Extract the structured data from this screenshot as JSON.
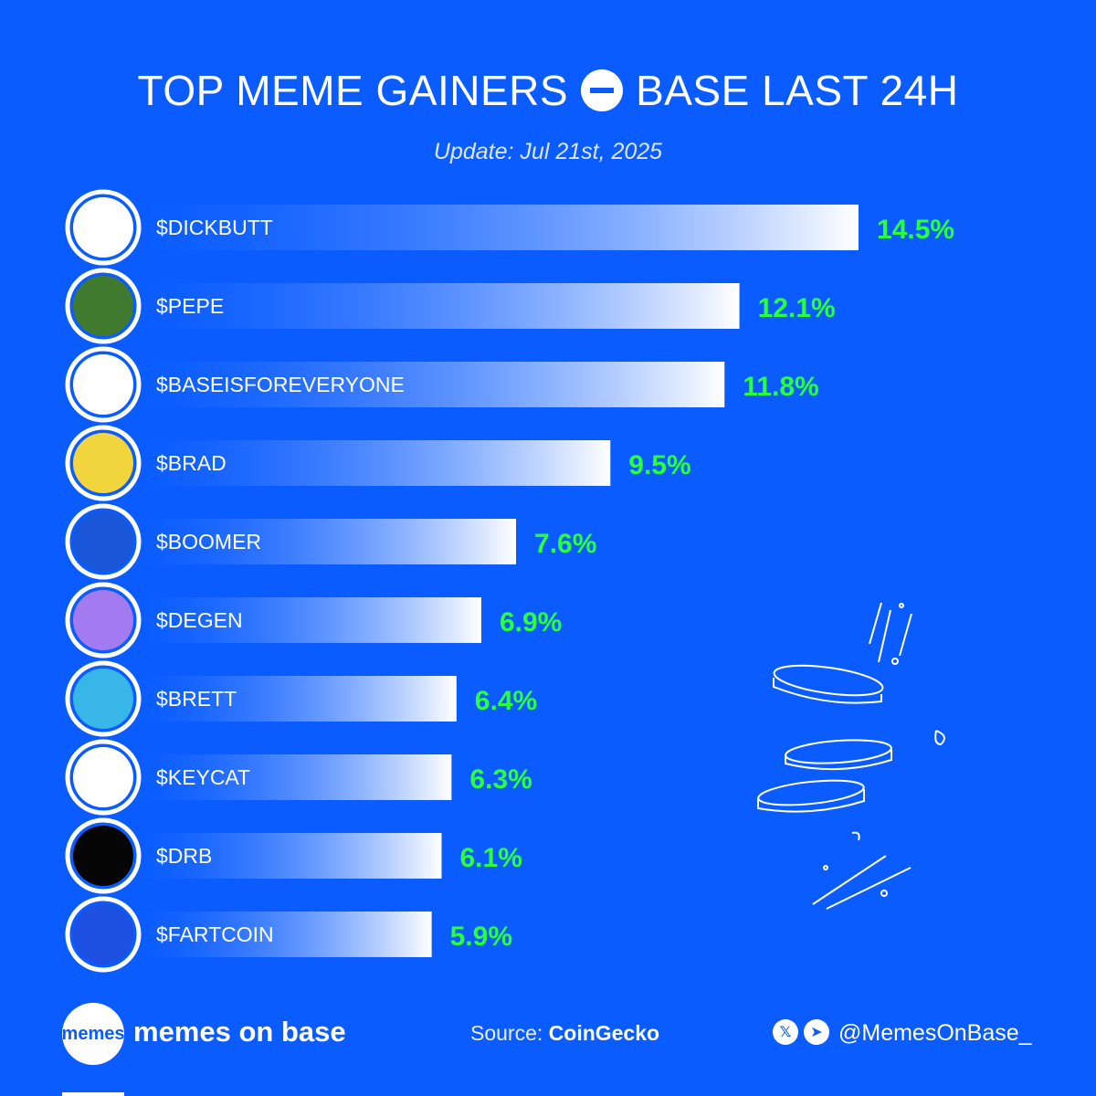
{
  "header": {
    "title_left": "TOP MEME GAINERS",
    "title_right": "BASE LAST 24H",
    "subtitle": "Update: Jul 21st, 2025"
  },
  "colors": {
    "background": "#0a5cff",
    "value_text": "#2bff3b",
    "bar_end": "#ffffff"
  },
  "chart_data": {
    "type": "bar",
    "orientation": "horizontal",
    "title": "TOP MEME GAINERS BASE LAST 24H",
    "categories": [
      "$DICKBUTT",
      "$PEPE",
      "$BASEISFOREVERYONE",
      "$BRAD",
      "$BOOMER",
      "$DEGEN",
      "$BRETT",
      "$KEYCAT",
      "$DRB",
      "$FARTCOIN"
    ],
    "values": [
      14.5,
      12.1,
      11.8,
      9.5,
      7.6,
      6.9,
      6.4,
      6.3,
      6.1,
      5.9
    ],
    "value_labels": [
      "14.5%",
      "12.1%",
      "11.8%",
      "9.5%",
      "7.6%",
      "6.9%",
      "6.4%",
      "6.3%",
      "6.1%",
      "5.9%"
    ],
    "icons": [
      "dickbutt-icon",
      "pepe-icon",
      "base-cap-icon",
      "brad-icon",
      "boomer-icon",
      "degen-hat-icon",
      "brett-icon",
      "keycat-icon",
      "drb-icon",
      "fartcoin-icon"
    ],
    "icon_colors": [
      "#ffffff",
      "#3f7a2e",
      "#ffffff",
      "#f2d53c",
      "#1a57d8",
      "#a27bf0",
      "#38b6e8",
      "#ffffff",
      "#050505",
      "#1d4fe0"
    ],
    "xlabel": "",
    "ylabel": "",
    "grid": false,
    "legend": "none"
  },
  "footer": {
    "logo_text": "memes",
    "brand": "memes on base",
    "source_label": "Source:",
    "source_name": "CoinGecko",
    "social_x": "𝕏",
    "social_telegram": "➤",
    "handle": "@MemesOnBase_"
  }
}
